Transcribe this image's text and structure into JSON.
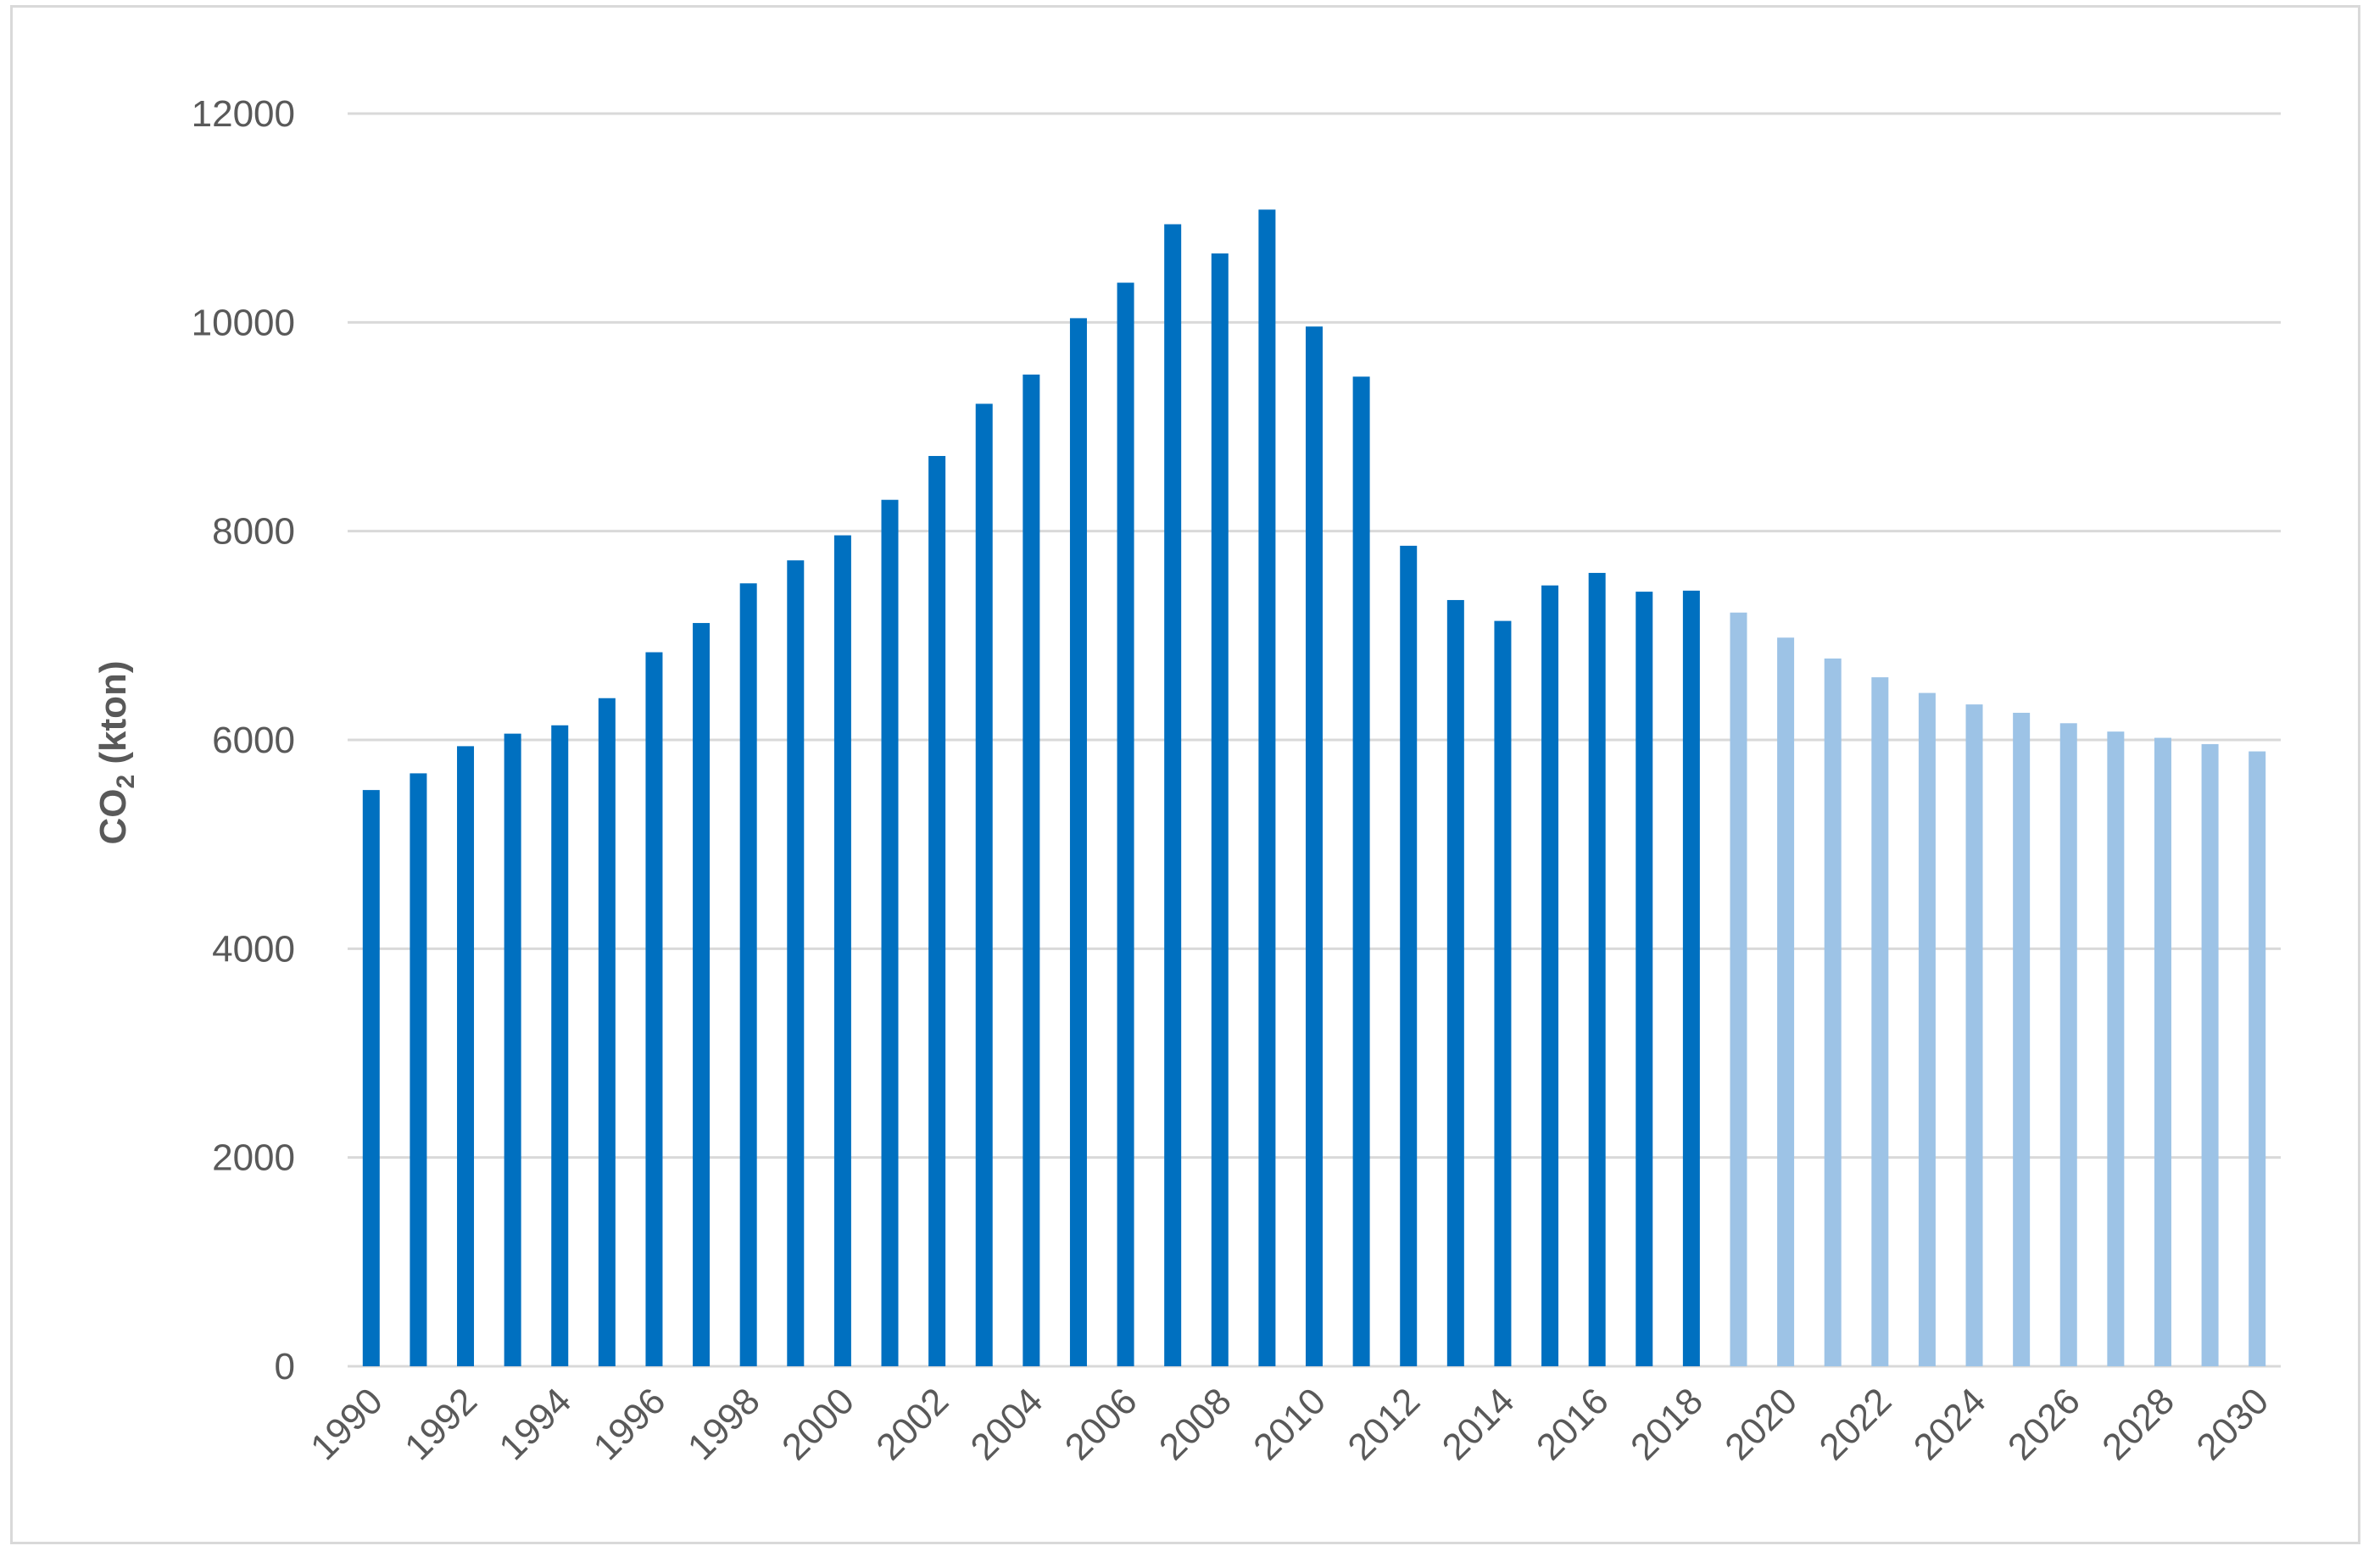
{
  "chart_data": {
    "type": "bar",
    "title": "",
    "xlabel": "",
    "ylabel": "CO2 (kton)",
    "ylabel_parts": {
      "main": "CO",
      "sub": "2",
      "rest": " (kton)"
    },
    "ylim": [
      0,
      12000
    ],
    "yticks": [
      0,
      2000,
      4000,
      6000,
      8000,
      10000,
      12000
    ],
    "grid": true,
    "legend": "none",
    "x": [
      1990,
      1991,
      1992,
      1993,
      1994,
      1995,
      1996,
      1997,
      1998,
      1999,
      2000,
      2001,
      2002,
      2003,
      2004,
      2005,
      2006,
      2007,
      2008,
      2009,
      2010,
      2011,
      2012,
      2013,
      2014,
      2015,
      2016,
      2017,
      2018,
      2019,
      2020,
      2021,
      2022,
      2023,
      2024,
      2025,
      2026,
      2027,
      2028,
      2029,
      2030
    ],
    "xtick_labels": [
      "1990",
      "1992",
      "1994",
      "1996",
      "1998",
      "2000",
      "2002",
      "2004",
      "2006",
      "2008",
      "2010",
      "2012",
      "2014",
      "2016",
      "2018",
      "2020",
      "2022",
      "2024",
      "2026",
      "2028",
      "2030"
    ],
    "values": [
      5520,
      5680,
      5940,
      6060,
      6140,
      6400,
      6840,
      7120,
      7500,
      7720,
      7960,
      8300,
      8720,
      9220,
      9500,
      10040,
      10380,
      10940,
      10660,
      11080,
      9960,
      9480,
      7860,
      7340,
      7140,
      7480,
      7600,
      7420,
      7430,
      7220,
      6980,
      6780,
      6600,
      6450,
      6340,
      6260,
      6160,
      6080,
      6020,
      5960,
      5890
    ],
    "colors": {
      "historical": "#0070C0",
      "projected": "#9DC3E6",
      "grid": "#d9d9d9",
      "text": "#595959"
    },
    "projection_start_year": 2019
  }
}
